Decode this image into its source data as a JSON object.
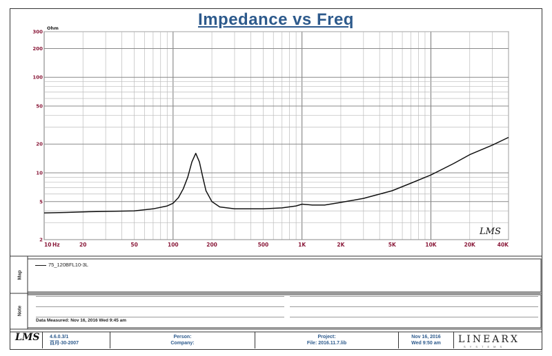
{
  "title": "Impedance vs Freq",
  "chart_data": {
    "type": "line",
    "title": "Impedance vs Freq",
    "x_unit": "Hz",
    "y_unit": "Ohm",
    "x_scale": "log",
    "y_scale": "log",
    "xlim": [
      10,
      40000
    ],
    "ylim": [
      2,
      300
    ],
    "grid": true,
    "x_ticks": [
      {
        "value": 10,
        "label": "10"
      },
      {
        "value": 20,
        "label": "20"
      },
      {
        "value": 50,
        "label": "50"
      },
      {
        "value": 100,
        "label": "100"
      },
      {
        "value": 200,
        "label": "200"
      },
      {
        "value": 500,
        "label": "500"
      },
      {
        "value": 1000,
        "label": "1K"
      },
      {
        "value": 2000,
        "label": "2K"
      },
      {
        "value": 5000,
        "label": "5K"
      },
      {
        "value": 10000,
        "label": "10K"
      },
      {
        "value": 20000,
        "label": "20K"
      },
      {
        "value": 40000,
        "label": "40K"
      }
    ],
    "y_ticks": [
      {
        "value": 300,
        "label": "300"
      },
      {
        "value": 200,
        "label": "200"
      },
      {
        "value": 100,
        "label": "100"
      },
      {
        "value": 50,
        "label": "50"
      },
      {
        "value": 20,
        "label": "20"
      },
      {
        "value": 10,
        "label": "10"
      },
      {
        "value": 5,
        "label": "5"
      },
      {
        "value": 2,
        "label": "2"
      }
    ],
    "series": [
      {
        "name": "75_120BFL10-3L",
        "color": "#111111",
        "x": [
          10,
          15,
          20,
          30,
          50,
          70,
          90,
          100,
          110,
          120,
          130,
          140,
          150,
          160,
          170,
          180,
          200,
          230,
          300,
          500,
          700,
          900,
          1000,
          1200,
          1500,
          2000,
          3000,
          5000,
          7000,
          10000,
          15000,
          20000,
          30000,
          40000
        ],
        "y": [
          3.8,
          3.85,
          3.9,
          3.95,
          4.0,
          4.2,
          4.5,
          4.8,
          5.5,
          6.8,
          9.0,
          13.0,
          16.0,
          13.0,
          9.0,
          6.5,
          5.0,
          4.4,
          4.2,
          4.2,
          4.3,
          4.5,
          4.7,
          4.6,
          4.6,
          4.9,
          5.4,
          6.5,
          7.8,
          9.5,
          12.5,
          15.5,
          19.5,
          23.5
        ]
      }
    ],
    "logo_text": "LMS"
  },
  "map_row": {
    "label": "Map",
    "legend_entry": "75_120BFL10-3L"
  },
  "note_row": {
    "label": "Note",
    "date_measured": "Data Measured: Nov 16, 2016  Wed  9:45 am"
  },
  "footer": {
    "logo": "LMS",
    "version": "4.6.0.3/1",
    "build_date": "百月-30-2007",
    "person_label": "Person:",
    "company_label": "Company:",
    "project_label": "Project:",
    "file_label": "File: 2016.11.7.lib",
    "date_line1": "Nov 16, 2016",
    "date_line2": "Wed  9:50 am",
    "brand": "LINEARX",
    "brand_sub": "SYSTEMS"
  }
}
